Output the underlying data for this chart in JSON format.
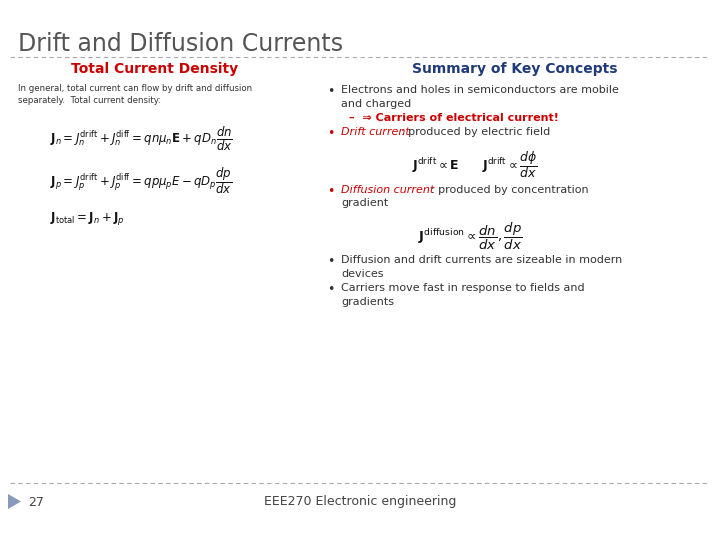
{
  "title": "Drift and Diffusion Currents",
  "title_color": "#555555",
  "bg_color": "#ffffff",
  "left_panel_title": "Total Current Density",
  "left_panel_title_color": "#cc0000",
  "right_panel_title": "Summary of Key Concepts",
  "right_panel_title_color": "#1f3a7a",
  "left_intro_line1": "In general, total current can flow by drift and diffusion",
  "left_intro_line2": "separately.  Total current density:",
  "bullet1_text": "Electrons and holes in semiconductors are mobile\nand charged",
  "bullet1_sub": "–  ⇒ Carriers of electrical current!",
  "bullet1_sub_color": "#cc0000",
  "bullet2_label": "Drift current",
  "bullet2_label_color": "#cc0000",
  "bullet2_rest": ": produced by electric field",
  "bullet3_label": "Diffusion current",
  "bullet3_label_color": "#cc0000",
  "bullet3_rest": ": produced by concentration\ngradient",
  "bullet4": "Diffusion and drift currents are sizeable in modern\ndevices",
  "bullet5": "Carriers move fast in response to fields and\ngradients",
  "footer_num": "27",
  "footer_text": "EEE270 Electronic engineering",
  "dashed_line_color": "#aaaaaa",
  "arrow_color": "#8899bb",
  "text_color": "#333333"
}
